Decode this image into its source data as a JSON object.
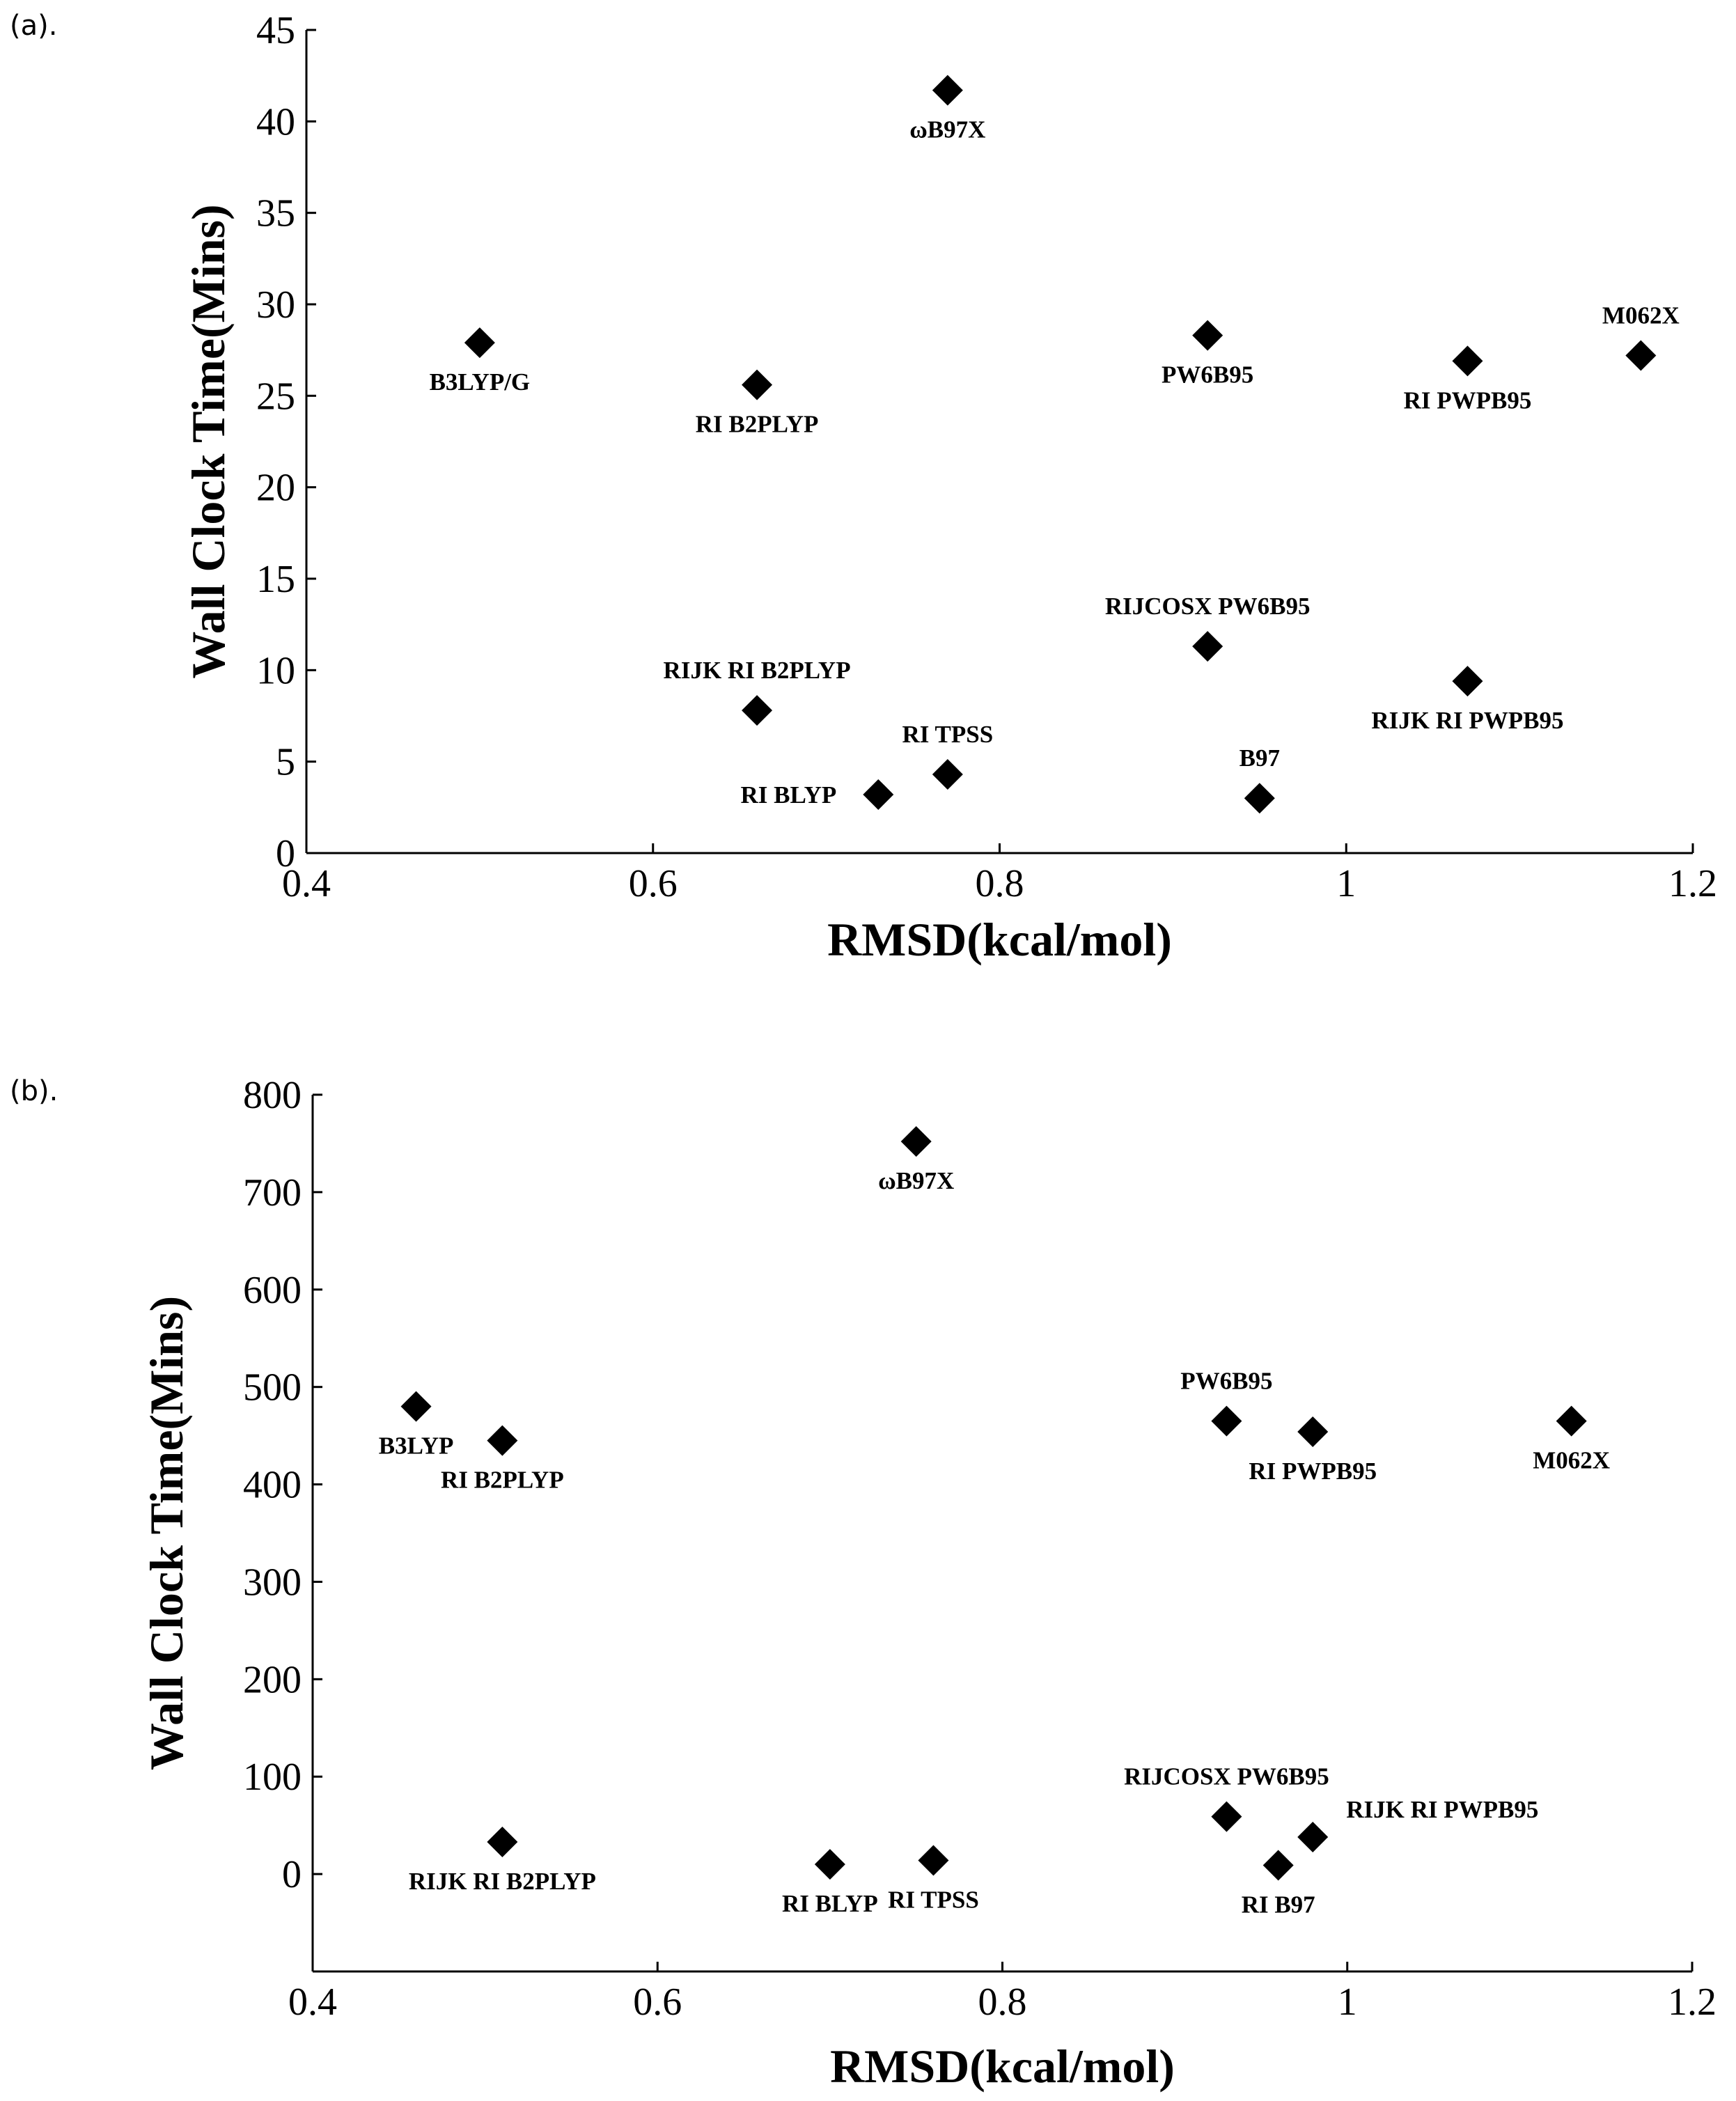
{
  "colors": {
    "marker": "#000000",
    "axis": "#000000",
    "background": "#ffffff"
  },
  "chart_data": [
    {
      "type": "scatter",
      "panel_label": "(a).",
      "title": "",
      "xlabel": "RMSD(kcal/mol)",
      "ylabel": "Wall Clock Time(Mins)",
      "xlim": [
        0.4,
        1.2
      ],
      "ylim": [
        0,
        45
      ],
      "xticks": [
        "0.4",
        "0.6",
        "0.8",
        "1",
        "1.2"
      ],
      "yticks": [
        "0",
        "5",
        "10",
        "15",
        "20",
        "25",
        "30",
        "35",
        "40",
        "45"
      ],
      "points": [
        {
          "label": "ωB97X",
          "x": 0.77,
          "y": 41.7,
          "label_pos": "below"
        },
        {
          "label": "B3LYP/G",
          "x": 0.5,
          "y": 27.9,
          "label_pos": "below"
        },
        {
          "label": "RI B2PLYP",
          "x": 0.66,
          "y": 25.6,
          "label_pos": "below"
        },
        {
          "label": "PW6B95",
          "x": 0.92,
          "y": 28.3,
          "label_pos": "below"
        },
        {
          "label": "RI PWPB95",
          "x": 1.07,
          "y": 26.9,
          "label_pos": "below"
        },
        {
          "label": "M062X",
          "x": 1.17,
          "y": 27.2,
          "label_pos": "above"
        },
        {
          "label": "RIJCOSX PW6B95",
          "x": 0.92,
          "y": 11.3,
          "label_pos": "above"
        },
        {
          "label": "RIJK RI B2PLYP",
          "x": 0.66,
          "y": 7.8,
          "label_pos": "above"
        },
        {
          "label": "RIJK RI PWPB95",
          "x": 1.07,
          "y": 9.4,
          "label_pos": "below"
        },
        {
          "label": "RI TPSS",
          "x": 0.77,
          "y": 4.3,
          "label_pos": "above"
        },
        {
          "label": "RI BLYP",
          "x": 0.73,
          "y": 3.2,
          "label_pos": "left"
        },
        {
          "label": "B97",
          "x": 0.95,
          "y": 3.0,
          "label_pos": "above"
        }
      ]
    },
    {
      "type": "scatter",
      "panel_label": "(b).",
      "title": "",
      "xlabel": "RMSD(kcal/mol)",
      "ylabel": "Wall Clock Time(Mins)",
      "xlim": [
        0.4,
        1.2
      ],
      "ylim": [
        -100,
        800
      ],
      "xticks": [
        "0.4",
        "0.6",
        "0.8",
        "1",
        "1.2"
      ],
      "yticks": [
        "0",
        "100",
        "200",
        "300",
        "400",
        "500",
        "600",
        "700",
        "800"
      ],
      "points": [
        {
          "label": "ωB97X",
          "x": 0.75,
          "y": 752,
          "label_pos": "below"
        },
        {
          "label": "B3LYP",
          "x": 0.46,
          "y": 480,
          "label_pos": "below"
        },
        {
          "label": "RI B2PLYP",
          "x": 0.51,
          "y": 445,
          "label_pos": "below"
        },
        {
          "label": "PW6B95",
          "x": 0.93,
          "y": 465,
          "label_pos": "above"
        },
        {
          "label": "RI PWPB95",
          "x": 0.98,
          "y": 454,
          "label_pos": "below"
        },
        {
          "label": "M062X",
          "x": 1.13,
          "y": 465,
          "label_pos": "below"
        },
        {
          "label": "RIJCOSX PW6B95",
          "x": 0.93,
          "y": 59,
          "label_pos": "above"
        },
        {
          "label": "RIJK RI PWPB95",
          "x": 0.98,
          "y": 38,
          "label_pos": "right"
        },
        {
          "label": "RIJK RI B2PLYP",
          "x": 0.51,
          "y": 33,
          "label_pos": "below"
        },
        {
          "label": "RI BLYP",
          "x": 0.7,
          "y": 10,
          "label_pos": "below"
        },
        {
          "label": "RI TPSS",
          "x": 0.76,
          "y": 14,
          "label_pos": "below"
        },
        {
          "label": "RI B97",
          "x": 0.96,
          "y": 9,
          "label_pos": "below"
        }
      ]
    }
  ]
}
